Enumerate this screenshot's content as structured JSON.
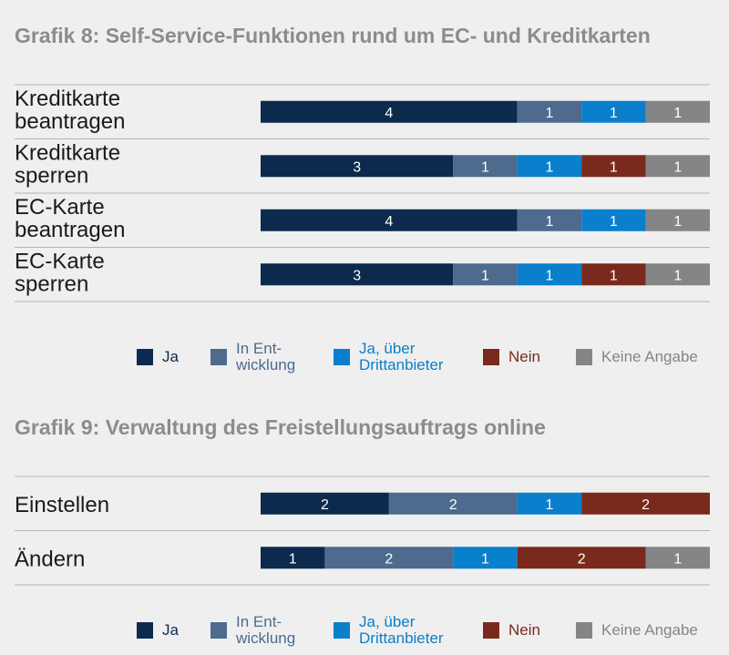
{
  "chart_data": [
    {
      "type": "bar",
      "stacked": true,
      "orientation": "horizontal",
      "title": "Grafik 8: Self-Service-Funktionen rund um EC- und Kreditkarten",
      "categories": [
        "Kreditkarte\nbeantragen",
        "Kreditkarte\nsperren",
        "EC-Karte\nbeantragen",
        "EC-Karte\nsperren"
      ],
      "series": [
        {
          "name": "Ja",
          "color": "#0c2a4e",
          "values": [
            4,
            3,
            4,
            3
          ]
        },
        {
          "name": "In Ent-\nwicklung",
          "color": "#4e6a8e",
          "values": [
            1,
            1,
            1,
            1
          ]
        },
        {
          "name": "Ja, über\nDrittanbieter",
          "color": "#0a7fcb",
          "values": [
            1,
            1,
            1,
            1
          ]
        },
        {
          "name": "Nein",
          "color": "#7a2a1c",
          "values": [
            0,
            1,
            0,
            1
          ]
        },
        {
          "name": "Keine Angabe",
          "color": "#838587",
          "values": [
            1,
            1,
            1,
            1
          ]
        }
      ],
      "xlim": [
        0,
        7
      ],
      "legend_position": "bottom"
    },
    {
      "type": "bar",
      "stacked": true,
      "orientation": "horizontal",
      "title": "Grafik 9:  Verwaltung des Freistellungsauftrags online",
      "categories": [
        "Einstellen",
        "Ändern"
      ],
      "series": [
        {
          "name": "Ja",
          "color": "#0c2a4e",
          "values": [
            2,
            1
          ]
        },
        {
          "name": "In Ent-\nwicklung",
          "color": "#4e6a8e",
          "values": [
            2,
            2
          ]
        },
        {
          "name": "Ja, über\nDrittanbieter",
          "color": "#0a7fcb",
          "values": [
            1,
            1
          ]
        },
        {
          "name": "Nein",
          "color": "#7a2a1c",
          "values": [
            2,
            2
          ]
        },
        {
          "name": "Keine Angabe",
          "color": "#838587",
          "values": [
            0,
            1
          ]
        }
      ],
      "xlim": [
        0,
        7
      ],
      "legend_position": "bottom"
    }
  ],
  "legend_text_colors": {
    "Ja": "#0c2a4e",
    "In Ent-\nwicklung": "#4e6a8e",
    "Ja, über\nDrittanbieter": "#0a7fcb",
    "Nein": "#7a2a1c",
    "Keine Angabe": "#838587"
  }
}
